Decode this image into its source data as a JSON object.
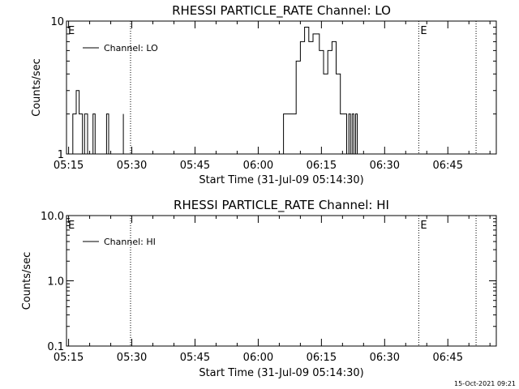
{
  "footer": {
    "timestamp": "15-Oct-2021 09:21"
  },
  "colors": {
    "background": "#ffffff",
    "foreground": "#000000"
  },
  "chart_data": [
    {
      "type": "line",
      "title": "RHESSI PARTICLE_RATE Channel: LO",
      "xlabel": "Start Time (31-Jul-09 05:14:30)",
      "ylabel": "Counts/sec",
      "y_scale": "log",
      "ylim": [
        1,
        10
      ],
      "y_ticks": [
        1,
        10
      ],
      "y_tick_labels": [
        "1",
        "10"
      ],
      "x_unit": "minutes after 05:14:30",
      "xlim": [
        0,
        102
      ],
      "x_ticks": [
        0.5,
        15.5,
        30.5,
        45.5,
        60.5,
        75.5,
        90.5
      ],
      "x_tick_labels": [
        "05:15",
        "05:30",
        "05:45",
        "06:00",
        "06:15",
        "06:30",
        "06:45"
      ],
      "grid": false,
      "legend_position": "top-left",
      "series": [
        {
          "name": "Channel: LO",
          "segments": [
            [
              [
                1.5,
                1
              ],
              [
                1.5,
                2
              ],
              [
                2.3,
                2
              ],
              [
                2.3,
                3
              ],
              [
                3.0,
                3
              ],
              [
                3.0,
                2
              ],
              [
                3.8,
                2
              ],
              [
                3.8,
                1
              ]
            ],
            [
              [
                4.3,
                1
              ],
              [
                4.3,
                2
              ],
              [
                5.0,
                2
              ],
              [
                5.0,
                1
              ]
            ],
            [
              [
                6.3,
                1
              ],
              [
                6.3,
                2
              ],
              [
                6.8,
                2
              ],
              [
                6.8,
                1
              ]
            ],
            [
              [
                9.5,
                1
              ],
              [
                9.5,
                2
              ],
              [
                10.0,
                2
              ],
              [
                10.0,
                1
              ]
            ],
            [
              [
                13.5,
                1
              ],
              [
                13.5,
                2
              ]
            ],
            [
              [
                51.5,
                1
              ],
              [
                51.5,
                2
              ],
              [
                54.5,
                2
              ],
              [
                54.5,
                5
              ],
              [
                55.5,
                5
              ],
              [
                55.5,
                7
              ],
              [
                56.5,
                7
              ],
              [
                56.5,
                9
              ],
              [
                57.5,
                9
              ],
              [
                57.5,
                7
              ],
              [
                58.5,
                7
              ],
              [
                58.5,
                8
              ],
              [
                60.0,
                8
              ],
              [
                60.0,
                6
              ],
              [
                61.0,
                6
              ],
              [
                61.0,
                4
              ],
              [
                62.0,
                4
              ],
              [
                62.0,
                6
              ],
              [
                63.0,
                6
              ],
              [
                63.0,
                7
              ],
              [
                64.0,
                7
              ],
              [
                64.0,
                4
              ],
              [
                65.0,
                4
              ],
              [
                65.0,
                2
              ],
              [
                66.5,
                2
              ],
              [
                66.5,
                1
              ]
            ],
            [
              [
                67.0,
                1
              ],
              [
                67.0,
                2
              ],
              [
                67.4,
                2
              ],
              [
                67.4,
                1
              ]
            ],
            [
              [
                67.8,
                1
              ],
              [
                67.8,
                2
              ],
              [
                68.2,
                2
              ],
              [
                68.2,
                1
              ]
            ],
            [
              [
                68.6,
                1
              ],
              [
                68.6,
                2
              ],
              [
                69.0,
                2
              ],
              [
                69.0,
                1
              ]
            ]
          ]
        }
      ],
      "markers": [
        {
          "x": 15.2,
          "style": "dotted",
          "label": ""
        },
        {
          "x": 83.6,
          "style": "dotted",
          "label": "E"
        },
        {
          "x": 97.2,
          "style": "dotted",
          "label": ""
        },
        {
          "x": 0.0,
          "style": "none",
          "label": "E"
        }
      ]
    },
    {
      "type": "line",
      "title": "RHESSI PARTICLE_RATE Channel: HI",
      "xlabel": "Start Time (31-Jul-09 05:14:30)",
      "ylabel": "Counts/sec",
      "y_scale": "log",
      "ylim": [
        0.1,
        10
      ],
      "y_ticks": [
        0.1,
        1,
        10
      ],
      "y_tick_labels": [
        "0.1",
        "1.0",
        "10.0"
      ],
      "x_unit": "minutes after 05:14:30",
      "xlim": [
        0,
        102
      ],
      "x_ticks": [
        0.5,
        15.5,
        30.5,
        45.5,
        60.5,
        75.5,
        90.5
      ],
      "x_tick_labels": [
        "05:15",
        "05:30",
        "05:45",
        "06:00",
        "06:15",
        "06:30",
        "06:45"
      ],
      "grid": false,
      "legend_position": "top-left",
      "series": [
        {
          "name": "Channel: HI",
          "segments": []
        }
      ],
      "markers": [
        {
          "x": 15.2,
          "style": "dotted",
          "label": ""
        },
        {
          "x": 83.6,
          "style": "dotted",
          "label": "E"
        },
        {
          "x": 97.2,
          "style": "dotted",
          "label": ""
        },
        {
          "x": 0.0,
          "style": "none",
          "label": "E"
        }
      ]
    }
  ]
}
